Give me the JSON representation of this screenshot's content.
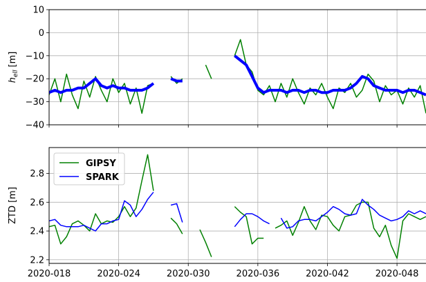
{
  "chart_data": [
    {
      "type": "line",
      "ylabel": "h",
      "ylabel_sub": "ell",
      "ylabel_unit": "[m]",
      "x": [
        18,
        18.5,
        19,
        19.5,
        20,
        20.5,
        21,
        21.5,
        22,
        22.5,
        23,
        23.5,
        24,
        24.5,
        25,
        25.5,
        26,
        26.5,
        27,
        27.5,
        28,
        28.5,
        29,
        29.5,
        30,
        30.5,
        31,
        31.5,
        32,
        32.5,
        33,
        33.5,
        34,
        34.5,
        35,
        35.5,
        36,
        36.5,
        37,
        37.5,
        38,
        38.5,
        39,
        39.5,
        40,
        40.5,
        41,
        41.5,
        42,
        42.5,
        43,
        43.5,
        44,
        44.5,
        45,
        45.5,
        46,
        46.5,
        47,
        47.5,
        48,
        48.5,
        49,
        49.5,
        50,
        50.5
      ],
      "series": [
        {
          "color": "#008000",
          "width": 1.5,
          "values": [
            -27,
            -20,
            -30,
            -18,
            -27,
            -33,
            -21,
            -28,
            -19,
            -25,
            -30,
            -20,
            -26,
            -22,
            -31,
            -24,
            -35,
            -23,
            -22,
            null,
            null,
            -19,
            -22,
            -20,
            null,
            null,
            null,
            -14,
            -20,
            null,
            null,
            null,
            -10,
            -3,
            -14,
            -17,
            -25,
            -27,
            -23,
            -30,
            -22,
            -28,
            -20,
            -26,
            -31,
            -24,
            -27,
            -22,
            -28,
            -33,
            -24,
            -26,
            -22,
            -28,
            -25,
            -18,
            -21,
            -30,
            -23,
            -27,
            -25,
            -31,
            -24,
            -28,
            -23,
            -35
          ]
        },
        {
          "color": "#0000ff",
          "width": 4,
          "values": [
            -26,
            -25,
            -26,
            -25,
            -25,
            -24,
            -24,
            -22,
            -20,
            -23,
            -24,
            -23,
            -24,
            -24,
            -25,
            -25,
            -25,
            -24,
            -22,
            null,
            null,
            -20,
            -21,
            -21,
            null,
            null,
            null,
            null,
            null,
            null,
            null,
            null,
            -10,
            -12,
            -14,
            -19,
            -24,
            -26,
            -25,
            -25,
            -25,
            -26,
            -25,
            -25,
            -26,
            -25,
            -25,
            -26,
            -26,
            -25,
            -25,
            -25,
            -24,
            -22,
            -19,
            -20,
            -23,
            -24,
            -25,
            -25,
            -25,
            -26,
            -25,
            -25,
            -26,
            -27
          ]
        }
      ],
      "xlim": [
        18,
        50.5
      ],
      "ylim": [
        -40,
        10
      ],
      "xticks": [
        18,
        24,
        30,
        36,
        42,
        48
      ],
      "yticks": [
        10,
        0,
        {
          "value": -10,
          "label": "−10"
        },
        {
          "value": -20,
          "label": "−20"
        },
        {
          "value": -30,
          "label": "−30"
        },
        {
          "value": -40,
          "label": "−40"
        }
      ],
      "grid": true
    },
    {
      "type": "line",
      "ylabel": "ZTD [m]",
      "legend": "upper left",
      "x": [
        18,
        18.5,
        19,
        19.5,
        20,
        20.5,
        21,
        21.5,
        22,
        22.5,
        23,
        23.5,
        24,
        24.5,
        25,
        25.5,
        26,
        26.5,
        27,
        27.5,
        28,
        28.5,
        29,
        29.5,
        30,
        30.5,
        31,
        31.5,
        32,
        32.5,
        33,
        33.5,
        34,
        34.5,
        35,
        35.5,
        36,
        36.5,
        37,
        37.5,
        38,
        38.5,
        39,
        39.5,
        40,
        40.5,
        41,
        41.5,
        42,
        42.5,
        43,
        43.5,
        44,
        44.5,
        45,
        45.5,
        46,
        46.5,
        47,
        47.5,
        48,
        48.5,
        49,
        49.5,
        50,
        50.5
      ],
      "series": [
        {
          "name": "GIPSY",
          "color": "#008000",
          "width": 1.5,
          "values": [
            2.43,
            2.44,
            2.31,
            2.36,
            2.45,
            2.47,
            2.44,
            2.4,
            2.52,
            2.45,
            2.47,
            2.46,
            2.5,
            2.57,
            2.5,
            2.56,
            2.75,
            2.93,
            2.68,
            null,
            null,
            2.49,
            2.45,
            2.38,
            null,
            null,
            2.41,
            2.32,
            2.22,
            null,
            null,
            null,
            2.57,
            2.53,
            2.5,
            2.31,
            2.35,
            2.35,
            null,
            2.42,
            2.44,
            2.47,
            2.37,
            2.46,
            2.57,
            2.47,
            2.41,
            2.51,
            2.5,
            2.44,
            2.4,
            2.5,
            2.51,
            2.58,
            2.6,
            2.6,
            2.42,
            2.36,
            2.44,
            2.3,
            2.21,
            2.47,
            2.52,
            2.5,
            2.48,
            2.5
          ]
        },
        {
          "name": "SPARK",
          "color": "#0000ff",
          "width": 1.5,
          "values": [
            2.47,
            2.48,
            2.44,
            2.43,
            2.43,
            2.43,
            2.44,
            2.42,
            2.4,
            2.45,
            2.45,
            2.47,
            2.48,
            2.61,
            2.58,
            2.5,
            2.55,
            2.62,
            2.67,
            null,
            null,
            2.58,
            2.59,
            2.46,
            null,
            null,
            null,
            null,
            null,
            null,
            null,
            null,
            2.43,
            2.48,
            2.52,
            2.52,
            2.5,
            2.47,
            2.45,
            null,
            2.49,
            2.42,
            2.43,
            2.47,
            2.48,
            2.48,
            2.47,
            2.5,
            2.53,
            2.57,
            2.55,
            2.52,
            2.51,
            2.52,
            2.62,
            2.58,
            2.55,
            2.51,
            2.49,
            2.47,
            2.48,
            2.5,
            2.54,
            2.52,
            2.54,
            2.52
          ]
        }
      ],
      "xlim": [
        18,
        50.5
      ],
      "ylim": [
        2.175,
        2.98
      ],
      "xticks": [
        {
          "value": 18,
          "label": "2020-018"
        },
        {
          "value": 24,
          "label": "2020-024"
        },
        {
          "value": 30,
          "label": "2020-030"
        },
        {
          "value": 36,
          "label": "2020-036"
        },
        {
          "value": 42,
          "label": "2020-042"
        },
        {
          "value": 48,
          "label": "2020-048"
        }
      ],
      "yticks": [
        2.2,
        2.4,
        2.6,
        2.8
      ],
      "grid": true
    }
  ]
}
